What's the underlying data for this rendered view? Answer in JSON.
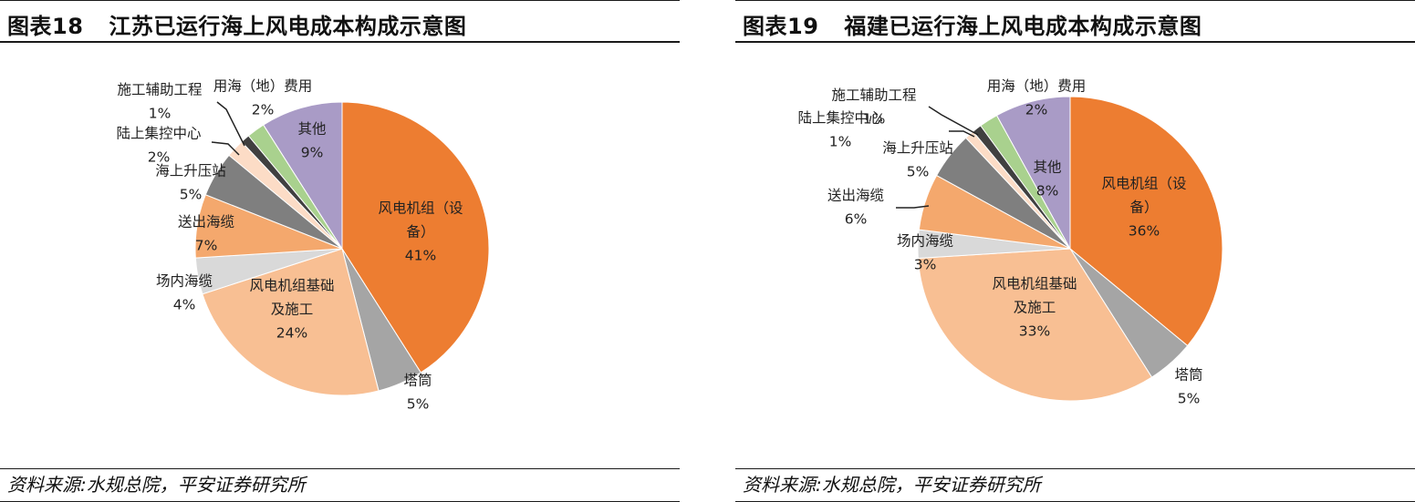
{
  "charts": [
    {
      "figure_label": "图表18",
      "title": "江苏已运行海上风电成本构成示意图",
      "source": "资料来源:水规总院，平安证券研究所"
    },
    {
      "figure_label": "图表19",
      "title": "福建已运行海上风电成本构成示意图",
      "source": "资料来源:水规总院，平安证券研究所"
    }
  ],
  "chart_data": [
    {
      "type": "pie",
      "title": "江苏已运行海上风电成本构成示意图",
      "unit": "%",
      "slices": [
        {
          "label": "风电机组（设备）",
          "display": [
            "风电机组（设",
            "备）"
          ],
          "value": 41,
          "color": "#ed7d31"
        },
        {
          "label": "塔筒",
          "display": [
            "塔筒"
          ],
          "value": 5,
          "color": "#a5a5a5"
        },
        {
          "label": "风电机组基础及施工",
          "display": [
            "风电机组基础",
            "及施工"
          ],
          "value": 24,
          "color": "#f8bf93"
        },
        {
          "label": "场内海缆",
          "display": [
            "场内海缆"
          ],
          "value": 4,
          "color": "#d9d9d9"
        },
        {
          "label": "送出海缆",
          "display": [
            "送出海缆"
          ],
          "value": 7,
          "color": "#f4a86d"
        },
        {
          "label": "海上升压站",
          "display": [
            "海上升压站"
          ],
          "value": 5,
          "color": "#7f7f7f"
        },
        {
          "label": "陆上集控中心",
          "display": [
            "陆上集控中心"
          ],
          "value": 2,
          "color": "#fcdcc6"
        },
        {
          "label": "施工辅助工程",
          "display": [
            "施工辅助工程"
          ],
          "value": 1,
          "color": "#404040"
        },
        {
          "label": "用海（地）费用",
          "display": [
            "用海（地）费用"
          ],
          "value": 2,
          "color": "#a9d18e"
        },
        {
          "label": "其他",
          "display": [
            "其他"
          ],
          "value": 9,
          "color": "#a99bc6"
        }
      ]
    },
    {
      "type": "pie",
      "title": "福建已运行海上风电成本构成示意图",
      "unit": "%",
      "slices": [
        {
          "label": "风电机组（设备）",
          "display": [
            "风电机组（设",
            "备）"
          ],
          "value": 36,
          "color": "#ed7d31"
        },
        {
          "label": "塔筒",
          "display": [
            "塔筒"
          ],
          "value": 5,
          "color": "#a5a5a5"
        },
        {
          "label": "风电机组基础及施工",
          "display": [
            "风电机组基础",
            "及施工"
          ],
          "value": 33,
          "color": "#f8bf93"
        },
        {
          "label": "场内海缆",
          "display": [
            "场内海缆"
          ],
          "value": 3,
          "color": "#d9d9d9"
        },
        {
          "label": "送出海缆",
          "display": [
            "送出海缆"
          ],
          "value": 6,
          "color": "#f4a86d"
        },
        {
          "label": "海上升压站",
          "display": [
            "海上升压站"
          ],
          "value": 5,
          "color": "#7f7f7f"
        },
        {
          "label": "陆上集控中心",
          "display": [
            "陆上集控中心"
          ],
          "value": 1,
          "color": "#fcdcc6"
        },
        {
          "label": "施工辅助工程",
          "display": [
            "施工辅助工程"
          ],
          "value": 1,
          "color": "#404040"
        },
        {
          "label": "用海（地）费用",
          "display": [
            "用海（地）费用"
          ],
          "value": 2,
          "color": "#a9d18e"
        },
        {
          "label": "其他",
          "display": [
            "其他"
          ],
          "value": 8,
          "color": "#a99bc6"
        }
      ]
    }
  ]
}
